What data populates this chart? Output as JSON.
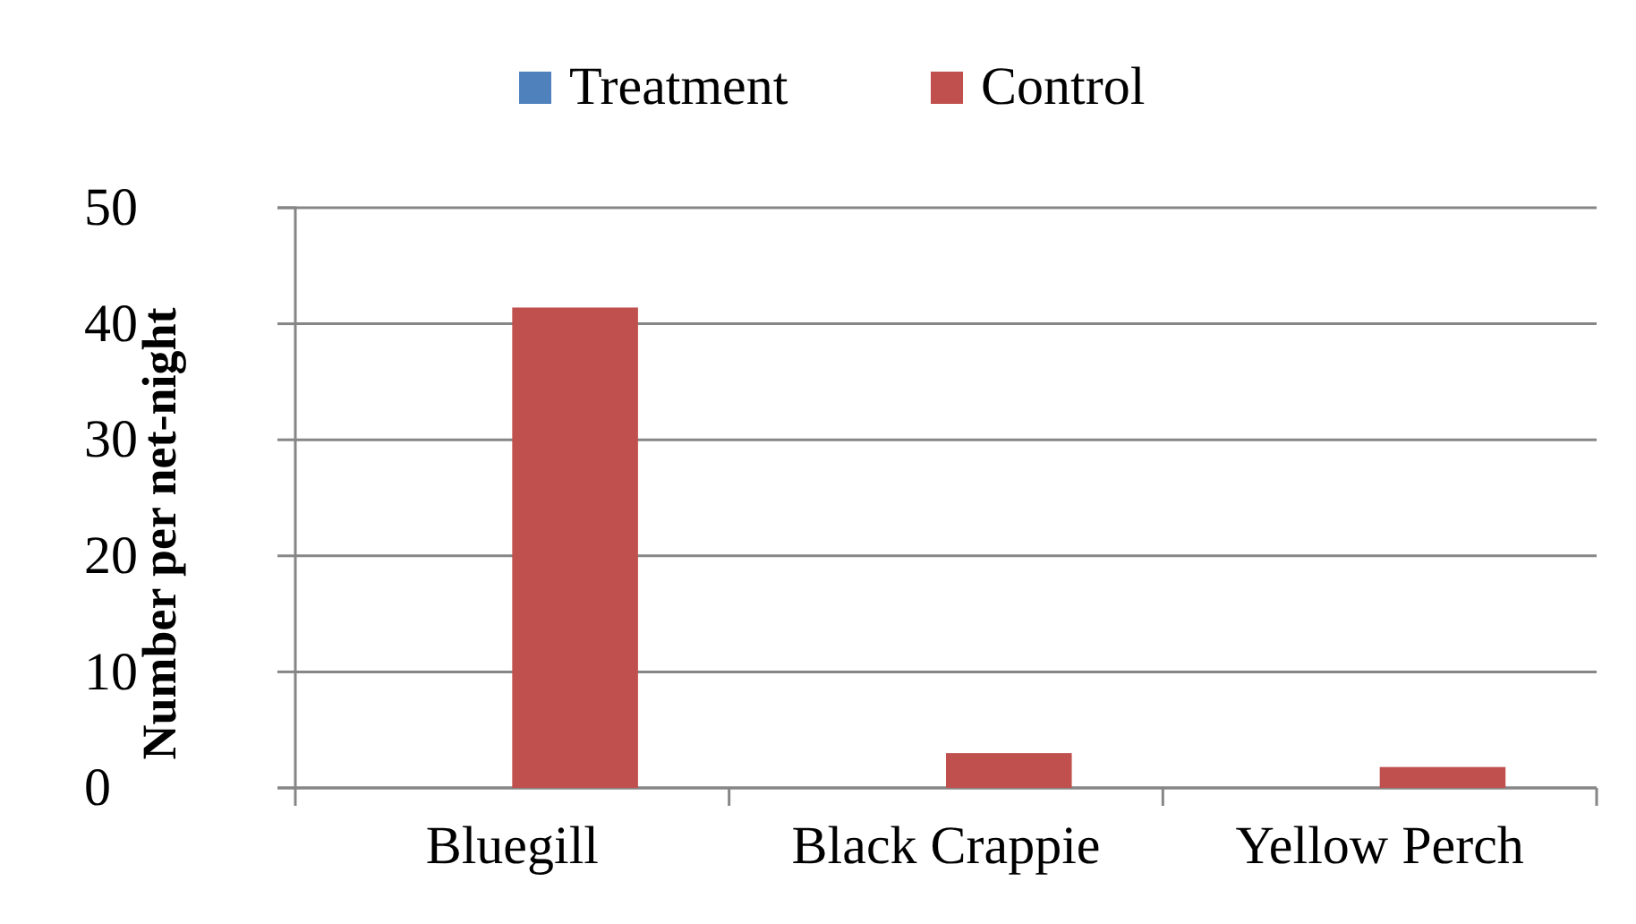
{
  "chart_data": {
    "type": "bar",
    "ylabel": "Number per net-night",
    "categories": [
      "Bluegill",
      "Black Crappie",
      "Yellow Perch"
    ],
    "series": [
      {
        "name": "Treatment",
        "color": "#4f81bd",
        "values": [
          0,
          0,
          0
        ]
      },
      {
        "name": "Control",
        "color": "#c0504d",
        "values": [
          41.4,
          3.0,
          1.8
        ]
      }
    ],
    "ylim": [
      0,
      50
    ],
    "yticks": [
      0,
      10,
      20,
      30,
      40,
      50
    ],
    "grid": "y",
    "legend": "top"
  }
}
